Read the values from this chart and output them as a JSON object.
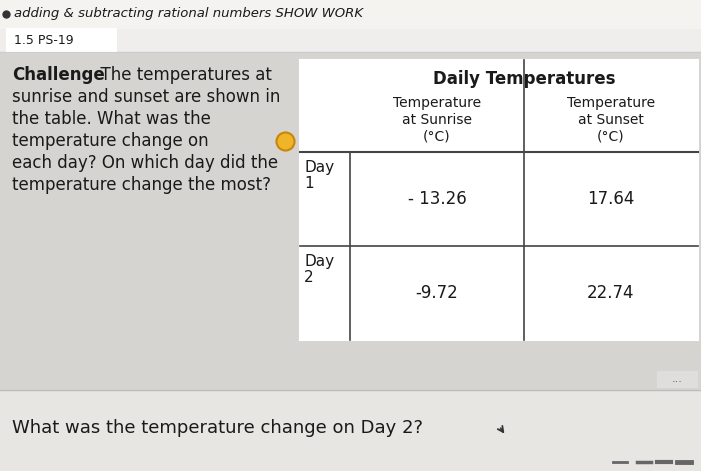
{
  "title": "adding & subtracting rational numbers SHOW WORK",
  "subtitle": "1.5 PS-19",
  "bg_top": "#f0eeec",
  "bg_main": "#d6d4d0",
  "bg_bottom": "#e8e6e2",
  "challenge_bold": "Challenge",
  "challenge_rest": "  The temperatures at",
  "challenge_lines": [
    "sunrise and sunset are shown in",
    "the table. What was the",
    "temperature change on",
    "each day? On which day did the",
    "temperature change the most?"
  ],
  "table_title": "Daily Temperatures",
  "col1_header": [
    "Temperature",
    "at Sunrise",
    "(°C)"
  ],
  "col2_header": [
    "Temperature",
    "at Sunset",
    "(°C)"
  ],
  "row1_label": [
    "Day",
    "1"
  ],
  "row1_col1": "- 13.26",
  "row1_col2": "17.64",
  "row2_label": [
    "Day",
    "2"
  ],
  "row2_col1": "-9.72",
  "row2_col2": "22.74",
  "bottom_text": "What was the temperature change on Day 2?",
  "dot_color": "#f0b429",
  "table_border_color": "#444444",
  "text_color": "#1a1a1a",
  "title_top_bar_color": "#f5f3f0",
  "subtitle_bar_color": "#ffffff",
  "table_bg": "#ffffff",
  "bottom_sep_color": "#bbbbbb"
}
